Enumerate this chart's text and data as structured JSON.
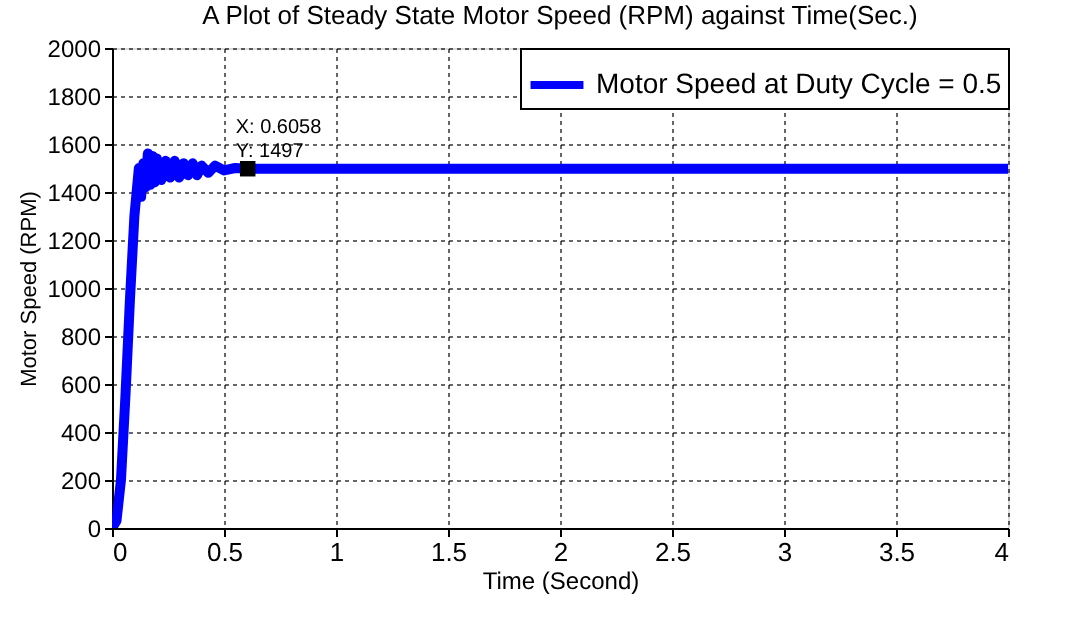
{
  "chart_data": {
    "type": "line",
    "title": "A Plot of Steady State Motor Speed (RPM) against Time(Sec.)",
    "xlabel": "Time (Second)",
    "ylabel": "Motor Speed (RPM)",
    "x": [
      0,
      0.02,
      0.04,
      0.06,
      0.08,
      0.1,
      0.12,
      0.13,
      0.14,
      0.15,
      0.16,
      0.17,
      0.18,
      0.19,
      0.2,
      0.22,
      0.24,
      0.26,
      0.28,
      0.3,
      0.32,
      0.34,
      0.36,
      0.38,
      0.4,
      0.43,
      0.46,
      0.5,
      0.55,
      0.6058,
      0.7,
      1,
      2,
      3,
      4
    ],
    "series": [
      {
        "name": "Motor Speed at Duty Cycle = 0.5",
        "color": "#0000ff",
        "values": [
          0,
          30,
          200,
          550,
          950,
          1300,
          1500,
          1380,
          1520,
          1420,
          1560,
          1430,
          1550,
          1440,
          1540,
          1450,
          1530,
          1460,
          1530,
          1460,
          1520,
          1470,
          1520,
          1470,
          1510,
          1480,
          1510,
          1490,
          1500,
          1497,
          1497,
          1497,
          1497,
          1497,
          1497
        ]
      }
    ],
    "xlim": [
      0,
      4
    ],
    "xticks": [
      0,
      0.5,
      1,
      1.5,
      2,
      2.5,
      3,
      3.5,
      4
    ],
    "ylim": [
      0,
      2000
    ],
    "yticks": [
      0,
      200,
      400,
      600,
      800,
      1000,
      1200,
      1400,
      1600,
      1800,
      2000
    ],
    "grid": true,
    "legend": "top right",
    "line_style": "solid",
    "marker": "none",
    "annotations": [
      {
        "text": "X: 0.6058\nY: 1497",
        "x": 0.6058,
        "y": 1497
      }
    ]
  }
}
